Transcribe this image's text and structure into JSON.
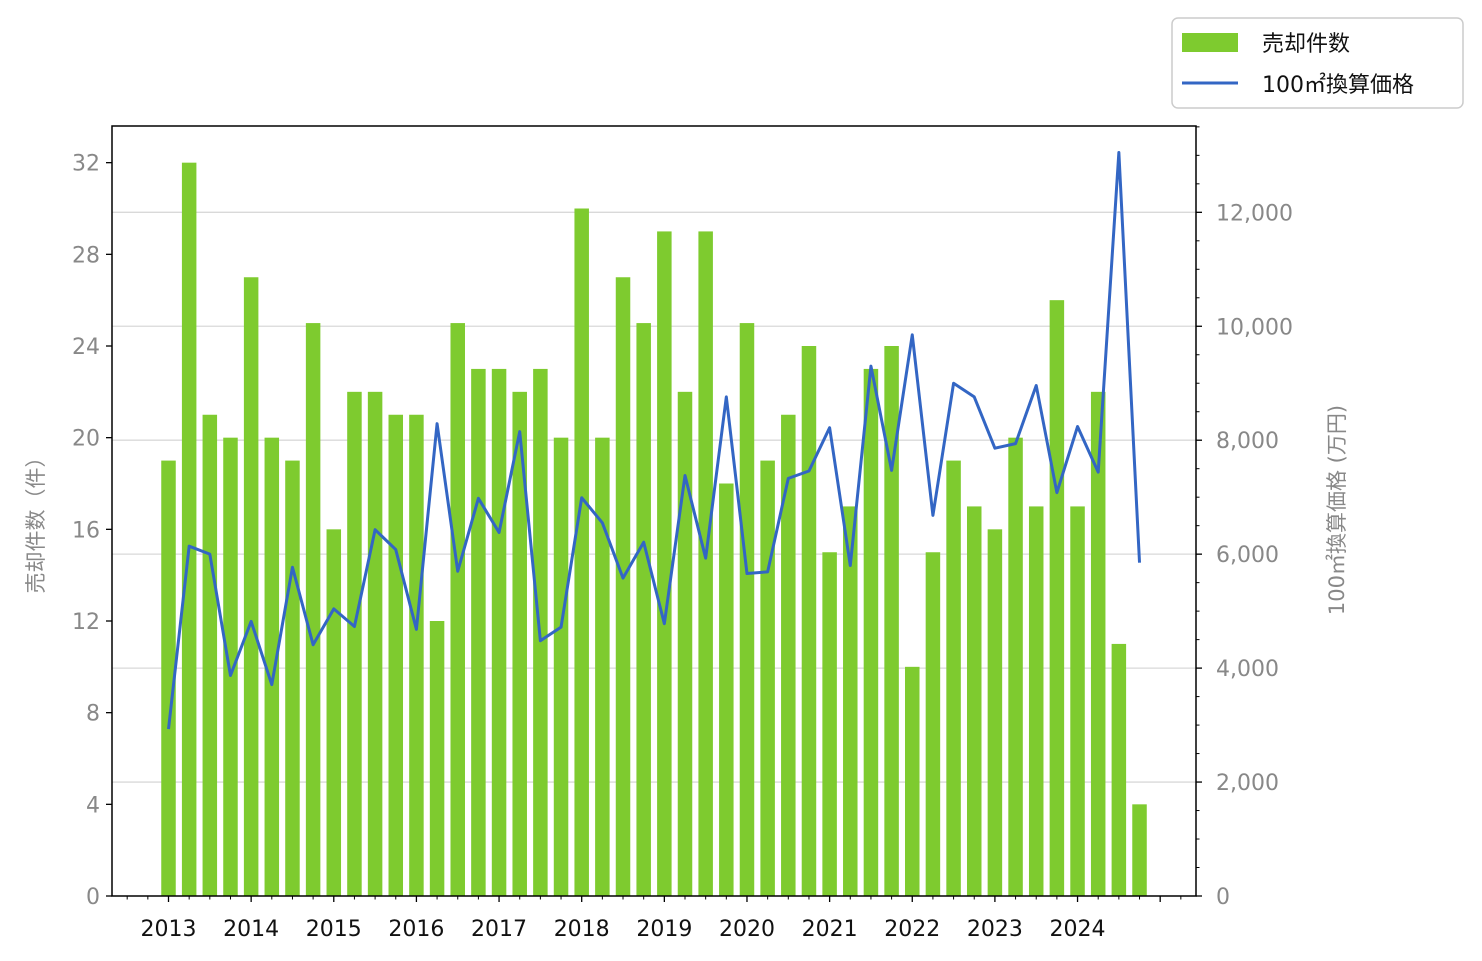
{
  "chart_data": {
    "type": "bar",
    "x_ticks": [
      "2013",
      "2014",
      "2015",
      "2016",
      "2017",
      "2018",
      "2019",
      "2020",
      "2021",
      "2022",
      "2023",
      "2024"
    ],
    "ylabel": "売却件数（件）",
    "y2label": "100㎡換算価格 (万円)",
    "ylim": [
      0,
      33.6
    ],
    "y2lim": [
      0,
      13515
    ],
    "yticks": [
      "0",
      "4",
      "8",
      "12",
      "16",
      "20",
      "24",
      "28",
      "32"
    ],
    "y2ticks": [
      "0",
      "2,000",
      "4,000",
      "6,000",
      "8,000",
      "10,000",
      "12,000"
    ],
    "grid": "horizontal lines on secondary axis",
    "legend_position": "top-right, outside plot",
    "colors": {
      "bars": "#7ecb2f",
      "line": "#3366c4"
    },
    "series": [
      {
        "name": "売却件数",
        "type": "bar",
        "axis": "left",
        "values": [
          19,
          32,
          21,
          20,
          27,
          20,
          19,
          25,
          16,
          22,
          22,
          21,
          21,
          12,
          25,
          23,
          23,
          22,
          23,
          20,
          30,
          20,
          27,
          25,
          29,
          22,
          29,
          18,
          25,
          19,
          21,
          24,
          15,
          17,
          23,
          24,
          10,
          15,
          19,
          17,
          16,
          20,
          17,
          26,
          17,
          22,
          11,
          4
        ]
      },
      {
        "name": "100㎡換算価格",
        "type": "line",
        "axis": "right",
        "values": [
          2930,
          6140,
          6000,
          3870,
          4820,
          3710,
          5770,
          4410,
          5040,
          4730,
          6430,
          6080,
          4680,
          8290,
          5700,
          6980,
          6380,
          8150,
          4480,
          4720,
          6990,
          6550,
          5580,
          6210,
          4780,
          7380,
          5930,
          8760,
          5660,
          5690,
          7330,
          7460,
          8220,
          5800,
          9300,
          7470,
          9850,
          6680,
          9000,
          8760,
          7860,
          7940,
          8960,
          7080,
          8240,
          7440,
          13050,
          5850
        ]
      }
    ]
  }
}
